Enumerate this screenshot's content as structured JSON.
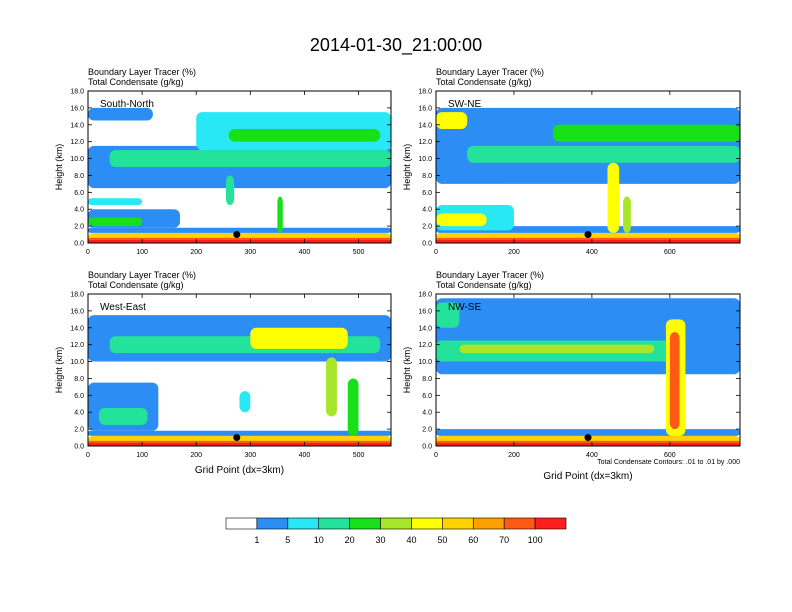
{
  "title": "2014-01-30_21:00:00",
  "colors": {
    "levels": [
      "#ffffff",
      "#2c8ef4",
      "#27e8f4",
      "#23e39a",
      "#18e018",
      "#a7e628",
      "#ffff00",
      "#ffd200",
      "#ffa000",
      "#ff5a14",
      "#ff1e1e"
    ],
    "contour": "#000000"
  },
  "colorbar": {
    "labels": [
      "1",
      "5",
      "10",
      "20",
      "30",
      "40",
      "50",
      "60",
      "70",
      "100"
    ]
  },
  "contour_note": "Total Condensate Contours: .01 to .01 by .000",
  "chart_data": [
    {
      "type": "heatmap",
      "panel_label": "South-North",
      "title_line1": "Boundary Layer Tracer   (%)",
      "title_line2": "Total Condensate   (g/kg)",
      "ylabel": "Height (km)",
      "xlabel": "",
      "xlim": [
        0,
        560
      ],
      "ylim": [
        0,
        18
      ],
      "xticks": [
        "0",
        "100",
        "200",
        "300",
        "400",
        "500"
      ],
      "xtick_values": [
        0,
        100,
        200,
        300,
        400,
        500
      ],
      "yticks": [
        "0.0",
        "2.0",
        "4.0",
        "6.0",
        "8.0",
        "10.0",
        "12.0",
        "14.0",
        "16.0",
        "18.0"
      ],
      "marker": {
        "x": 275,
        "y": 1.0
      },
      "features": [
        {
          "x0": 0,
          "x1": 560,
          "h0": 0,
          "h1": 1.2,
          "level": 7
        },
        {
          "x0": 0,
          "x1": 560,
          "h0": 0,
          "h1": 0.6,
          "level": 9
        },
        {
          "x0": 0,
          "x1": 560,
          "h0": 1.2,
          "h1": 1.8,
          "level": 1
        },
        {
          "x0": 0,
          "x1": 170,
          "h0": 1.8,
          "h1": 4.0,
          "level": 1
        },
        {
          "x0": 0,
          "x1": 100,
          "h0": 2.0,
          "h1": 3.0,
          "level": 4
        },
        {
          "x0": 0,
          "x1": 100,
          "h0": 4.5,
          "h1": 5.3,
          "level": 2
        },
        {
          "x0": 0,
          "x1": 560,
          "h0": 6.5,
          "h1": 11.5,
          "level": 1
        },
        {
          "x0": 0,
          "x1": 120,
          "h0": 14.5,
          "h1": 16.0,
          "level": 1
        },
        {
          "x0": 40,
          "x1": 560,
          "h0": 9.0,
          "h1": 11.0,
          "level": 3
        },
        {
          "x0": 200,
          "x1": 560,
          "h0": 11.0,
          "h1": 15.5,
          "level": 2
        },
        {
          "x0": 260,
          "x1": 540,
          "h0": 12.0,
          "h1": 13.5,
          "level": 4
        },
        {
          "x0": 255,
          "x1": 270,
          "h0": 4.5,
          "h1": 8.0,
          "level": 3
        },
        {
          "x0": 350,
          "x1": 360,
          "h0": 1.2,
          "h1": 5.5,
          "level": 4
        }
      ]
    },
    {
      "type": "heatmap",
      "panel_label": "SW-NE",
      "title_line1": "Boundary Layer Tracer   (%)",
      "title_line2": "Total Condensate   (g/kg)",
      "ylabel": "Height (km)",
      "xlabel": "",
      "xlim": [
        0,
        780
      ],
      "ylim": [
        0,
        18
      ],
      "xticks": [
        "0",
        "200",
        "400",
        "600"
      ],
      "xtick_values": [
        0,
        200,
        400,
        600
      ],
      "yticks": [
        "0.0",
        "2.0",
        "4.0",
        "6.0",
        "8.0",
        "10.0",
        "12.0",
        "14.0",
        "16.0",
        "18.0"
      ],
      "marker": {
        "x": 390,
        "y": 1.0
      },
      "features": [
        {
          "x0": 0,
          "x1": 780,
          "h0": 0,
          "h1": 1.2,
          "level": 7
        },
        {
          "x0": 0,
          "x1": 780,
          "h0": 0,
          "h1": 0.6,
          "level": 9
        },
        {
          "x0": 0,
          "x1": 780,
          "h0": 1.2,
          "h1": 2.0,
          "level": 1
        },
        {
          "x0": 0,
          "x1": 200,
          "h0": 1.5,
          "h1": 4.5,
          "level": 2
        },
        {
          "x0": 0,
          "x1": 130,
          "h0": 2.0,
          "h1": 3.5,
          "level": 6
        },
        {
          "x0": 0,
          "x1": 780,
          "h0": 7.0,
          "h1": 16.0,
          "level": 1
        },
        {
          "x0": 0,
          "x1": 80,
          "h0": 13.5,
          "h1": 15.5,
          "level": 6
        },
        {
          "x0": 80,
          "x1": 780,
          "h0": 9.5,
          "h1": 11.5,
          "level": 3
        },
        {
          "x0": 300,
          "x1": 780,
          "h0": 12.0,
          "h1": 14.0,
          "level": 4
        },
        {
          "x0": 440,
          "x1": 470,
          "h0": 1.2,
          "h1": 9.5,
          "level": 6
        },
        {
          "x0": 480,
          "x1": 500,
          "h0": 1.2,
          "h1": 5.5,
          "level": 5
        }
      ]
    },
    {
      "type": "heatmap",
      "panel_label": "West-East",
      "title_line1": "Boundary Layer Tracer   (%)",
      "title_line2": "Total Condensate   (g/kg)",
      "ylabel": "Height (km)",
      "xlabel": "Grid Point (dx=3km)",
      "xlim": [
        0,
        560
      ],
      "ylim": [
        0,
        18
      ],
      "xticks": [
        "0",
        "100",
        "200",
        "300",
        "400",
        "500"
      ],
      "xtick_values": [
        0,
        100,
        200,
        300,
        400,
        500
      ],
      "yticks": [
        "0.0",
        "2.0",
        "4.0",
        "6.0",
        "8.0",
        "10.0",
        "12.0",
        "14.0",
        "16.0",
        "18.0"
      ],
      "marker": {
        "x": 275,
        "y": 1.0
      },
      "features": [
        {
          "x0": 0,
          "x1": 560,
          "h0": 0,
          "h1": 1.2,
          "level": 7
        },
        {
          "x0": 0,
          "x1": 560,
          "h0": 0,
          "h1": 0.6,
          "level": 9
        },
        {
          "x0": 0,
          "x1": 560,
          "h0": 1.2,
          "h1": 1.8,
          "level": 1
        },
        {
          "x0": 0,
          "x1": 130,
          "h0": 1.8,
          "h1": 7.5,
          "level": 1
        },
        {
          "x0": 20,
          "x1": 110,
          "h0": 2.5,
          "h1": 4.5,
          "level": 3
        },
        {
          "x0": 0,
          "x1": 560,
          "h0": 10.0,
          "h1": 15.5,
          "level": 1
        },
        {
          "x0": 40,
          "x1": 540,
          "h0": 11.0,
          "h1": 13.0,
          "level": 3
        },
        {
          "x0": 300,
          "x1": 480,
          "h0": 11.5,
          "h1": 14.0,
          "level": 6
        },
        {
          "x0": 440,
          "x1": 460,
          "h0": 3.5,
          "h1": 10.5,
          "level": 5
        },
        {
          "x0": 480,
          "x1": 500,
          "h0": 1.2,
          "h1": 8.0,
          "level": 4
        },
        {
          "x0": 280,
          "x1": 300,
          "h0": 4.0,
          "h1": 6.5,
          "level": 2
        }
      ]
    },
    {
      "type": "heatmap",
      "panel_label": "NW-SE",
      "title_line1": "Boundary Layer Tracer   (%)",
      "title_line2": "Total Condensate   (g/kg)",
      "ylabel": "Height (km)",
      "xlabel": "Grid Point (dx=3km)",
      "xlim": [
        0,
        780
      ],
      "ylim": [
        0,
        18
      ],
      "xticks": [
        "0",
        "200",
        "400",
        "600"
      ],
      "xtick_values": [
        0,
        200,
        400,
        600
      ],
      "yticks": [
        "0.0",
        "2.0",
        "4.0",
        "6.0",
        "8.0",
        "10.0",
        "12.0",
        "14.0",
        "16.0",
        "18.0"
      ],
      "marker": {
        "x": 390,
        "y": 1.0
      },
      "features": [
        {
          "x0": 0,
          "x1": 780,
          "h0": 0,
          "h1": 1.2,
          "level": 7
        },
        {
          "x0": 0,
          "x1": 780,
          "h0": 0,
          "h1": 0.6,
          "level": 9
        },
        {
          "x0": 0,
          "x1": 780,
          "h0": 1.2,
          "h1": 2.0,
          "level": 1
        },
        {
          "x0": 0,
          "x1": 780,
          "h0": 8.5,
          "h1": 17.5,
          "level": 1
        },
        {
          "x0": 0,
          "x1": 640,
          "h0": 10.0,
          "h1": 12.5,
          "level": 3
        },
        {
          "x0": 60,
          "x1": 560,
          "h0": 11.0,
          "h1": 12.0,
          "level": 5
        },
        {
          "x0": 0,
          "x1": 60,
          "h0": 14.0,
          "h1": 17.0,
          "level": 3
        },
        {
          "x0": 590,
          "x1": 640,
          "h0": 1.2,
          "h1": 15.0,
          "level": 6
        },
        {
          "x0": 600,
          "x1": 625,
          "h0": 2.0,
          "h1": 13.5,
          "level": 9
        }
      ]
    }
  ]
}
